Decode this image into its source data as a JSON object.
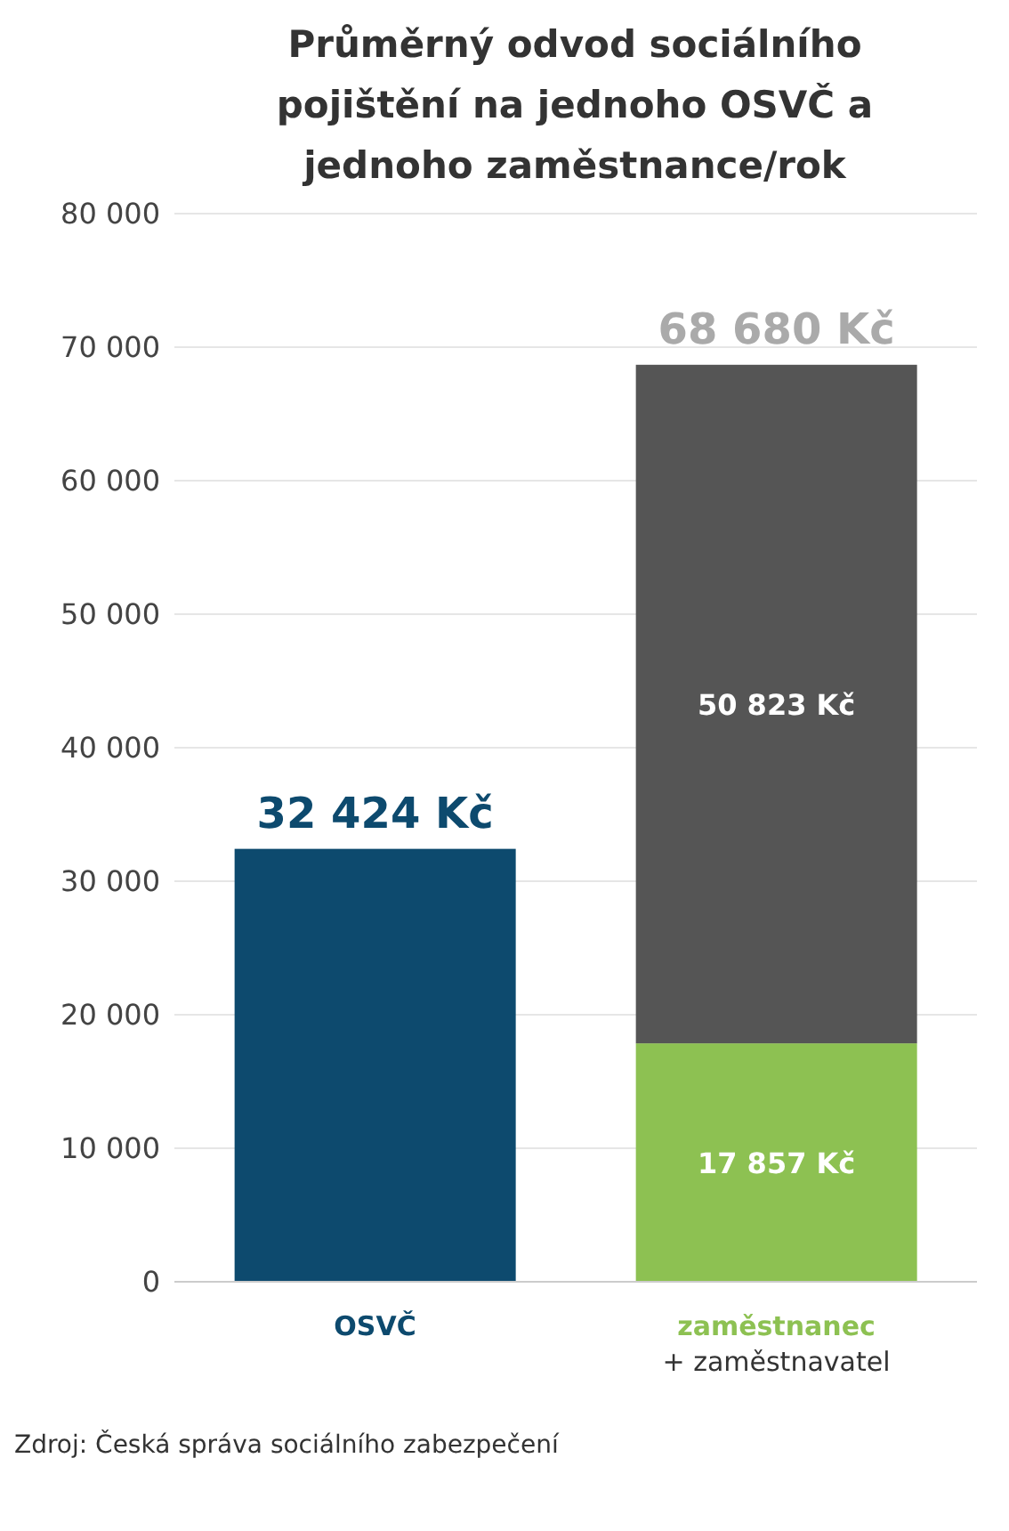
{
  "chart_data": {
    "type": "bar",
    "title": "Průměrný odvod sociálního pojištění na jednoho OSVČ a jednoho zaměstnance/rok",
    "categories": [
      "OSVČ",
      "zaměstnanec + zaměstnavatel"
    ],
    "stacked": true,
    "series": [
      {
        "colors": [
          "#0d4a6e",
          "#8dc152"
        ],
        "values": [
          32424,
          17857
        ],
        "value_labels": [
          null,
          "17 857 Kč"
        ]
      },
      {
        "color": "#555555",
        "values": [
          null,
          50823
        ],
        "value_labels": [
          null,
          "50 823 Kč"
        ]
      }
    ],
    "totals": [
      "32 424 Kč",
      "68 680 Kč"
    ],
    "ylim": [
      0,
      80000
    ],
    "yticks": [
      0,
      10000,
      20000,
      30000,
      40000,
      50000,
      60000,
      70000,
      80000
    ],
    "grid": "y",
    "annotations": [
      "Zdroj: Česká správa sociálního zabezpečení"
    ]
  }
}
